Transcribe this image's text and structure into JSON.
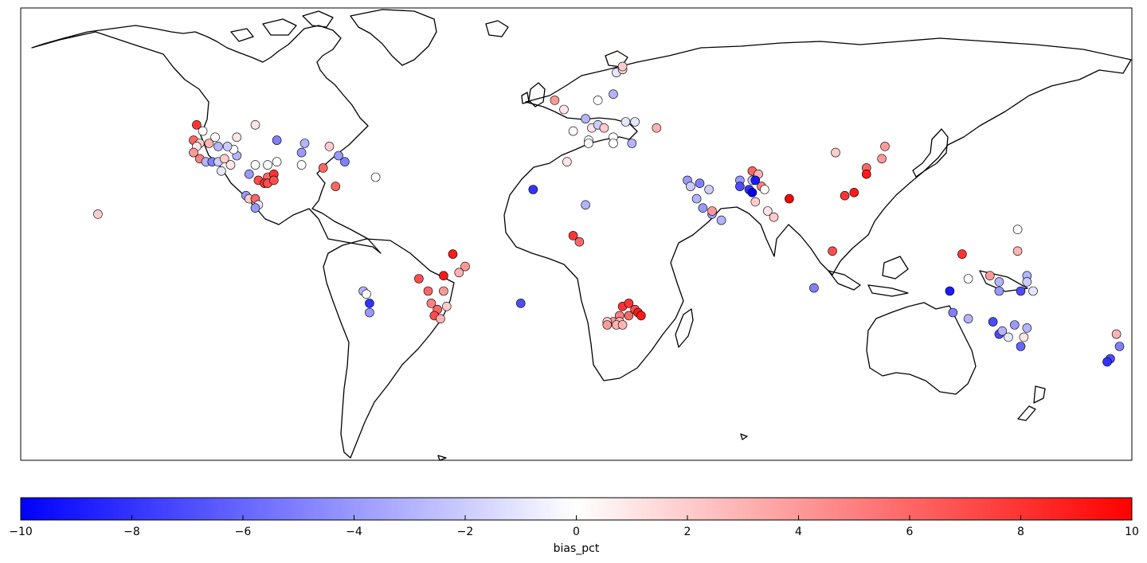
{
  "colorbar": {
    "label": "bias_pct",
    "min": -10,
    "max": 10,
    "colors": {
      "low": "#0000ff",
      "mid": "#ffffff",
      "high": "#ff0000"
    },
    "ticks": [
      "−10",
      "−8",
      "−6",
      "−4",
      "−2",
      "0",
      "2",
      "4",
      "6",
      "8",
      "10"
    ]
  },
  "chart_data": {
    "type": "scatter",
    "projection": "equirectangular",
    "extent": {
      "lon": [
        -180,
        180
      ],
      "lat": [
        -60,
        87
      ]
    },
    "points": [
      {
        "lon": -123,
        "lat": 49,
        "v": 8
      },
      {
        "lon": -121,
        "lat": 47,
        "v": 0
      },
      {
        "lon": -124,
        "lat": 44,
        "v": 6
      },
      {
        "lon": -122,
        "lat": 43,
        "v": 2
      },
      {
        "lon": -123,
        "lat": 42,
        "v": 1
      },
      {
        "lon": -119,
        "lat": 43,
        "v": 3
      },
      {
        "lon": -117,
        "lat": 45,
        "v": 0
      },
      {
        "lon": -124,
        "lat": 40,
        "v": 4
      },
      {
        "lon": -122,
        "lat": 38,
        "v": 5
      },
      {
        "lon": -120,
        "lat": 37,
        "v": -3
      },
      {
        "lon": -118,
        "lat": 37,
        "v": -5
      },
      {
        "lon": -116,
        "lat": 37,
        "v": -2
      },
      {
        "lon": -114,
        "lat": 38,
        "v": 2
      },
      {
        "lon": -115,
        "lat": 34,
        "v": -1
      },
      {
        "lon": -112,
        "lat": 36,
        "v": 1
      },
      {
        "lon": -110,
        "lat": 39,
        "v": -3
      },
      {
        "lon": -111,
        "lat": 41,
        "v": 0
      },
      {
        "lon": -113,
        "lat": 42,
        "v": -2
      },
      {
        "lon": -116,
        "lat": 42,
        "v": -3
      },
      {
        "lon": -104,
        "lat": 49,
        "v": 1
      },
      {
        "lon": -110,
        "lat": 45,
        "v": 1
      },
      {
        "lon": -97,
        "lat": 44,
        "v": -5
      },
      {
        "lon": -88,
        "lat": 43,
        "v": -3
      },
      {
        "lon": -89,
        "lat": 40,
        "v": -4
      },
      {
        "lon": -104,
        "lat": 36,
        "v": 0
      },
      {
        "lon": -100,
        "lat": 36,
        "v": 0
      },
      {
        "lon": -97,
        "lat": 37,
        "v": 0
      },
      {
        "lon": -89,
        "lat": 36,
        "v": 0
      },
      {
        "lon": -80,
        "lat": 42,
        "v": 2
      },
      {
        "lon": -77,
        "lat": 39,
        "v": -4
      },
      {
        "lon": -75,
        "lat": 37,
        "v": -5
      },
      {
        "lon": -82,
        "lat": 35,
        "v": 6
      },
      {
        "lon": -65,
        "lat": 32,
        "v": 0
      },
      {
        "lon": -106,
        "lat": 33,
        "v": -4
      },
      {
        "lon": -103,
        "lat": 31,
        "v": 7
      },
      {
        "lon": -100,
        "lat": 32,
        "v": 6
      },
      {
        "lon": -98,
        "lat": 33,
        "v": 8
      },
      {
        "lon": -101,
        "lat": 30,
        "v": 8
      },
      {
        "lon": -100,
        "lat": 30,
        "v": 7
      },
      {
        "lon": -98,
        "lat": 31,
        "v": 7
      },
      {
        "lon": -107,
        "lat": 26,
        "v": -4
      },
      {
        "lon": -106,
        "lat": 25,
        "v": 2
      },
      {
        "lon": -104,
        "lat": 25,
        "v": 6
      },
      {
        "lon": -103,
        "lat": 23,
        "v": -1
      },
      {
        "lon": -78,
        "lat": 29,
        "v": 6
      },
      {
        "lon": -155,
        "lat": 20,
        "v": 2
      },
      {
        "lon": -104,
        "lat": 22,
        "v": -4
      },
      {
        "lon": -7,
        "lat": 57,
        "v": 4
      },
      {
        "lon": -4,
        "lat": 54,
        "v": 1
      },
      {
        "lon": 3,
        "lat": 51,
        "v": -3
      },
      {
        "lon": 7,
        "lat": 57,
        "v": 0
      },
      {
        "lon": 12,
        "lat": 59,
        "v": -3
      },
      {
        "lon": 13,
        "lat": 66,
        "v": -1
      },
      {
        "lon": 15,
        "lat": 67,
        "v": 2
      },
      {
        "lon": 15,
        "lat": 68,
        "v": 2
      },
      {
        "lon": -1,
        "lat": 47,
        "v": 0
      },
      {
        "lon": 5,
        "lat": 48,
        "v": 1
      },
      {
        "lon": 7,
        "lat": 49,
        "v": -2
      },
      {
        "lon": 9,
        "lat": 48,
        "v": 2
      },
      {
        "lon": 4,
        "lat": 44,
        "v": 0
      },
      {
        "lon": 16,
        "lat": 50,
        "v": -1
      },
      {
        "lon": 19,
        "lat": 50,
        "v": -1
      },
      {
        "lon": 26,
        "lat": 48,
        "v": 3
      },
      {
        "lon": 12,
        "lat": 45,
        "v": 0
      },
      {
        "lon": 12,
        "lat": 43,
        "v": 0
      },
      {
        "lon": 4,
        "lat": 43,
        "v": 0
      },
      {
        "lon": 18,
        "lat": 43,
        "v": -3
      },
      {
        "lon": -3,
        "lat": 37,
        "v": 1
      },
      {
        "lon": -14,
        "lat": 28,
        "v": -8
      },
      {
        "lon": 3,
        "lat": 23,
        "v": -3
      },
      {
        "lon": -1,
        "lat": 13,
        "v": 8
      },
      {
        "lon": 1,
        "lat": 11,
        "v": 6
      },
      {
        "lon": 36,
        "lat": 31,
        "v": -4
      },
      {
        "lon": 37,
        "lat": 29,
        "v": -2
      },
      {
        "lon": 40,
        "lat": 30,
        "v": -5
      },
      {
        "lon": 43,
        "lat": 28,
        "v": -2
      },
      {
        "lon": 39,
        "lat": 25,
        "v": -3
      },
      {
        "lon": 41,
        "lat": 22,
        "v": -4
      },
      {
        "lon": 44,
        "lat": 20,
        "v": -4
      },
      {
        "lon": 44,
        "lat": 21,
        "v": 4
      },
      {
        "lon": 47,
        "lat": 18,
        "v": -3
      },
      {
        "lon": 53,
        "lat": 31,
        "v": -4
      },
      {
        "lon": 53,
        "lat": 29,
        "v": -7
      },
      {
        "lon": 56,
        "lat": 28,
        "v": -8
      },
      {
        "lon": 57,
        "lat": 27,
        "v": -10
      },
      {
        "lon": 57,
        "lat": 31,
        "v": -2
      },
      {
        "lon": 57,
        "lat": 34,
        "v": 6
      },
      {
        "lon": 59,
        "lat": 33,
        "v": 3
      },
      {
        "lon": 58,
        "lat": 31,
        "v": -9
      },
      {
        "lon": 60,
        "lat": 29,
        "v": 5
      },
      {
        "lon": 61,
        "lat": 28,
        "v": 0
      },
      {
        "lon": 58,
        "lat": 24,
        "v": 2
      },
      {
        "lon": 62,
        "lat": 21,
        "v": 1
      },
      {
        "lon": 64,
        "lat": 19,
        "v": 2
      },
      {
        "lon": 69,
        "lat": 25,
        "v": 10
      },
      {
        "lon": 84,
        "lat": 40,
        "v": 2
      },
      {
        "lon": 94,
        "lat": 35,
        "v": 6
      },
      {
        "lon": 94,
        "lat": 33,
        "v": 9
      },
      {
        "lon": 99,
        "lat": 38,
        "v": 4
      },
      {
        "lon": 100,
        "lat": 42,
        "v": 4
      },
      {
        "lon": 90,
        "lat": 27,
        "v": 9
      },
      {
        "lon": 87,
        "lat": 26,
        "v": 8
      },
      {
        "lon": 83,
        "lat": 8,
        "v": 7
      },
      {
        "lon": 77,
        "lat": -4,
        "v": -5
      },
      {
        "lon": 125,
        "lat": 7,
        "v": 8
      },
      {
        "lon": 143,
        "lat": 15,
        "v": 0
      },
      {
        "lon": 143,
        "lat": 8,
        "v": 3
      },
      {
        "lon": -40,
        "lat": 7,
        "v": 9
      },
      {
        "lon": -36,
        "lat": 3,
        "v": 4
      },
      {
        "lon": -38,
        "lat": 1,
        "v": 3
      },
      {
        "lon": -43,
        "lat": 0,
        "v": 9
      },
      {
        "lon": -51,
        "lat": -1,
        "v": 7
      },
      {
        "lon": -48,
        "lat": -5,
        "v": 6
      },
      {
        "lon": -43,
        "lat": -5,
        "v": 4
      },
      {
        "lon": -47,
        "lat": -9,
        "v": 5
      },
      {
        "lon": -45,
        "lat": -11,
        "v": 6
      },
      {
        "lon": -42,
        "lat": -10,
        "v": 2
      },
      {
        "lon": -46,
        "lat": -13,
        "v": 7
      },
      {
        "lon": -44,
        "lat": -14,
        "v": 3
      },
      {
        "lon": -69,
        "lat": -5,
        "v": -3
      },
      {
        "lon": -68,
        "lat": -6,
        "v": 0
      },
      {
        "lon": -67,
        "lat": -9,
        "v": -8
      },
      {
        "lon": -67,
        "lat": -12,
        "v": -4
      },
      {
        "lon": -18,
        "lat": -9,
        "v": -7
      },
      {
        "lon": 15,
        "lat": -10,
        "v": 8
      },
      {
        "lon": 17,
        "lat": -9,
        "v": 8
      },
      {
        "lon": 19,
        "lat": -11,
        "v": 7
      },
      {
        "lon": 20,
        "lat": -12,
        "v": 9
      },
      {
        "lon": 21,
        "lat": -13,
        "v": 9
      },
      {
        "lon": 17,
        "lat": -13,
        "v": 6
      },
      {
        "lon": 14,
        "lat": -13,
        "v": 5
      },
      {
        "lon": 12,
        "lat": -15,
        "v": 4
      },
      {
        "lon": 14,
        "lat": -15,
        "v": 3
      },
      {
        "lon": 13,
        "lat": -16,
        "v": 3
      },
      {
        "lon": 15,
        "lat": -16,
        "v": 3
      },
      {
        "lon": 10,
        "lat": -15,
        "v": 2
      },
      {
        "lon": 10,
        "lat": -16,
        "v": 4
      },
      {
        "lon": 121,
        "lat": -5,
        "v": -9
      },
      {
        "lon": 122,
        "lat": -12,
        "v": -5
      },
      {
        "lon": 127,
        "lat": -1,
        "v": 0
      },
      {
        "lon": 134,
        "lat": 0,
        "v": 4
      },
      {
        "lon": 137,
        "lat": -2,
        "v": -3
      },
      {
        "lon": 137,
        "lat": -5,
        "v": -4
      },
      {
        "lon": 127,
        "lat": -14,
        "v": -3
      },
      {
        "lon": 146,
        "lat": 0,
        "v": -3
      },
      {
        "lon": 146,
        "lat": -2,
        "v": -2
      },
      {
        "lon": 144,
        "lat": -5,
        "v": -7
      },
      {
        "lon": 148,
        "lat": -5,
        "v": -1
      },
      {
        "lon": 135,
        "lat": -15,
        "v": -7
      },
      {
        "lon": 137,
        "lat": -19,
        "v": -7
      },
      {
        "lon": 138,
        "lat": -18,
        "v": -3
      },
      {
        "lon": 142,
        "lat": -16,
        "v": -4
      },
      {
        "lon": 140,
        "lat": -20,
        "v": -1
      },
      {
        "lon": 145,
        "lat": -20,
        "v": 1
      },
      {
        "lon": 146,
        "lat": -17,
        "v": -3
      },
      {
        "lon": 144,
        "lat": -23,
        "v": -6
      },
      {
        "lon": 175,
        "lat": -19,
        "v": 3
      },
      {
        "lon": 176,
        "lat": -23,
        "v": -5
      },
      {
        "lon": 173,
        "lat": -27,
        "v": -7
      },
      {
        "lon": 172,
        "lat": -28,
        "v": -8
      }
    ]
  }
}
